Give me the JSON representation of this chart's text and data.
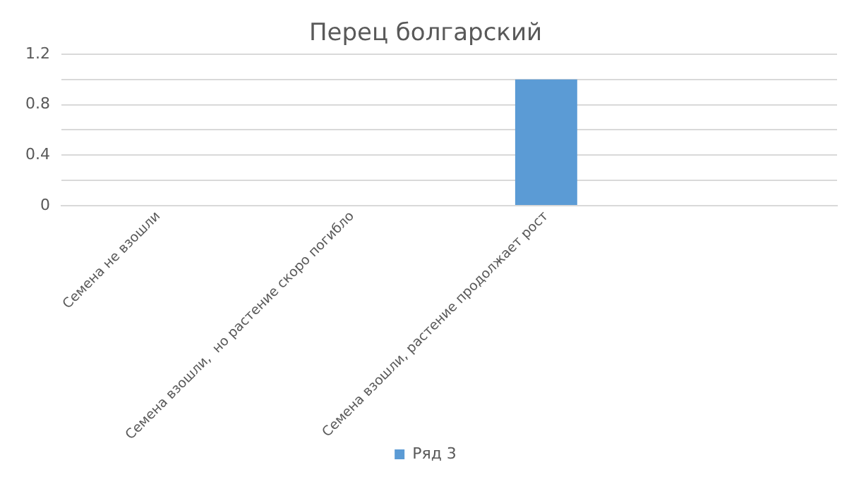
{
  "chart_data": {
    "type": "bar",
    "title": "Перец болгарский",
    "categories": [
      "Семена не взошли",
      "Семена взошли,  но растение скоро погибло",
      "Семена взошли, растение продолжает рост",
      null
    ],
    "series": [
      {
        "name": "Ряд 3",
        "color": "#5b9bd5",
        "values": [
          0,
          0,
          1,
          null
        ]
      }
    ],
    "ylim": [
      0,
      1.2
    ],
    "yticks": [
      0,
      {
        "value": 0.2,
        "label": null
      },
      0.4,
      {
        "value": 0.6,
        "label": null
      },
      0.8,
      {
        "value": 1,
        "label": null
      },
      1.2
    ],
    "grid": "y",
    "legend": "bottom"
  }
}
